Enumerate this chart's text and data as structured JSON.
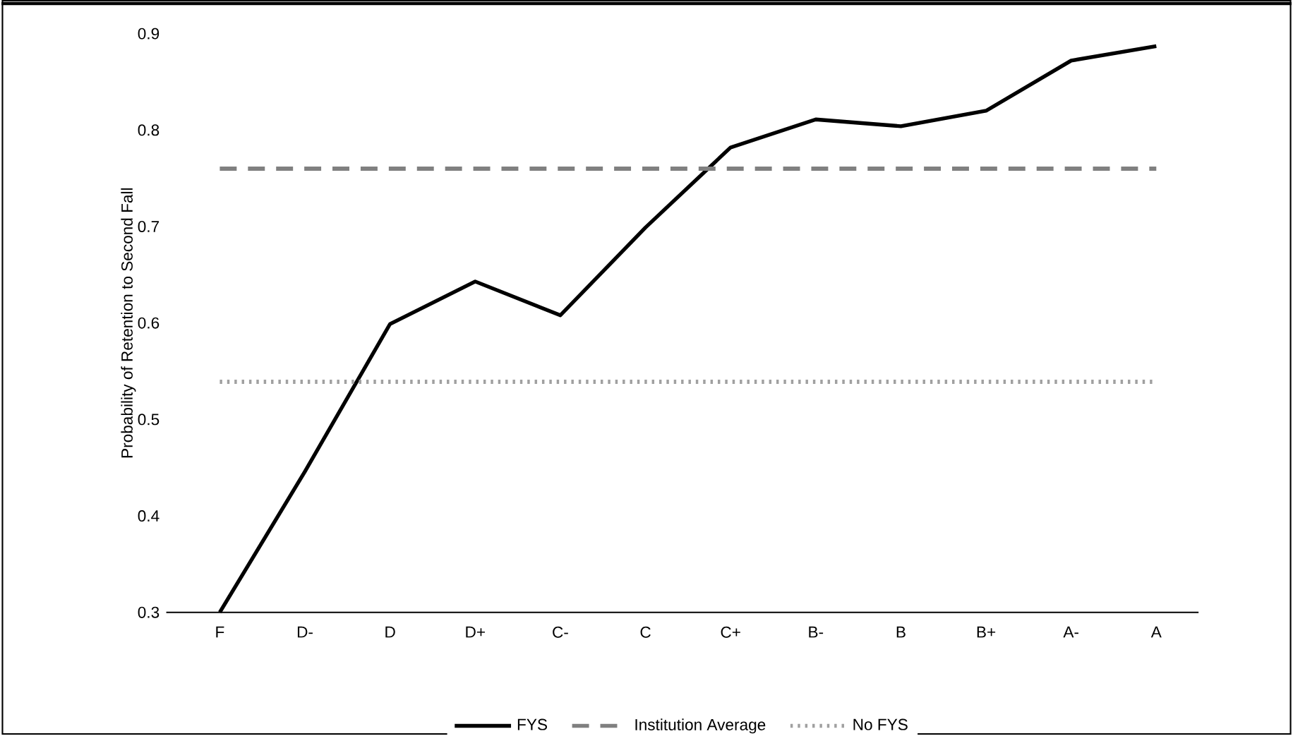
{
  "chart_data": {
    "type": "line",
    "ylabel": "Probability of Retention to Second Fall",
    "categories": [
      "F",
      "D-",
      "D",
      "D+",
      "C-",
      "C",
      "C+",
      "B-",
      "B",
      "B+",
      "A-",
      "A"
    ],
    "series": [
      {
        "name": "FYS",
        "color": "#000000",
        "line_style": "solid",
        "values": [
          0.3,
          0.446,
          0.599,
          0.643,
          0.608,
          0.699,
          0.782,
          0.811,
          0.804,
          0.82,
          0.872,
          0.887
        ]
      },
      {
        "name": "Institution Average",
        "color": "#808080",
        "line_style": "dashed",
        "values": [
          0.76,
          0.76,
          0.76,
          0.76,
          0.76,
          0.76,
          0.76,
          0.76,
          0.76,
          0.76,
          0.76,
          0.76
        ]
      },
      {
        "name": "No FYS",
        "color": "#a0a0a0",
        "line_style": "dotted",
        "values": [
          0.539,
          0.539,
          0.539,
          0.539,
          0.539,
          0.539,
          0.539,
          0.539,
          0.539,
          0.539,
          0.539,
          0.539
        ]
      }
    ],
    "ylim": [
      0.3,
      0.9
    ],
    "yticks": [
      0.3,
      0.4,
      0.5,
      0.6,
      0.7,
      0.8,
      0.9
    ],
    "grid": false,
    "legend": "bottom",
    "marker": "none"
  }
}
